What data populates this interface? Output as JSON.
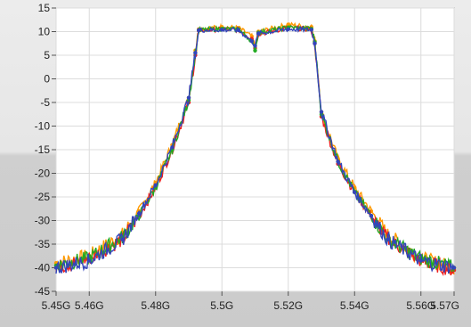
{
  "chart_data": {
    "type": "scatter",
    "title": "",
    "xlabel": "",
    "ylabel": "",
    "xlim": [
      5.45,
      5.57
    ],
    "ylim": [
      -45,
      15
    ],
    "grid": true,
    "x_ticks": [
      {
        "value": 5.45,
        "label": "5.45G"
      },
      {
        "value": 5.46,
        "label": "5.46G"
      },
      {
        "value": 5.48,
        "label": "5.48G"
      },
      {
        "value": 5.5,
        "label": "5.5G"
      },
      {
        "value": 5.52,
        "label": "5.52G"
      },
      {
        "value": 5.54,
        "label": "5.54G"
      },
      {
        "value": 5.56,
        "label": "5.56G"
      },
      {
        "value": 5.57,
        "label": "5.57G"
      }
    ],
    "y_ticks": [
      {
        "value": 15,
        "label": "15"
      },
      {
        "value": 10,
        "label": "10"
      },
      {
        "value": 5,
        "label": "5"
      },
      {
        "value": 0,
        "label": "0"
      },
      {
        "value": -5,
        "label": "-5"
      },
      {
        "value": -10,
        "label": "-10"
      },
      {
        "value": -15,
        "label": "-15"
      },
      {
        "value": -20,
        "label": "-20"
      },
      {
        "value": -25,
        "label": "-25"
      },
      {
        "value": -30,
        "label": "-30"
      },
      {
        "value": -35,
        "label": "-35"
      },
      {
        "value": -40,
        "label": "-40"
      },
      {
        "value": -45,
        "label": "-45"
      }
    ],
    "series": [
      {
        "color": "#ff9900",
        "x": [
          5.45,
          5.46,
          5.47,
          5.475,
          5.48,
          5.485,
          5.49,
          5.492,
          5.493,
          5.5,
          5.505,
          5.509,
          5.51,
          5.511,
          5.52,
          5.527,
          5.528,
          5.53,
          5.535,
          5.54,
          5.545,
          5.55,
          5.56,
          5.57
        ],
        "y": [
          -39,
          -37.5,
          -33,
          -28,
          -22,
          -14,
          -4,
          6,
          10.5,
          11,
          10.8,
          9,
          7,
          10,
          11.5,
          11,
          8,
          -7,
          -17,
          -23,
          -28,
          -33,
          -38,
          -40
        ]
      },
      {
        "color": "#ee2020",
        "x": [
          5.45,
          5.46,
          5.47,
          5.475,
          5.48,
          5.485,
          5.49,
          5.492,
          5.493,
          5.5,
          5.505,
          5.509,
          5.51,
          5.511,
          5.52,
          5.527,
          5.528,
          5.53,
          5.535,
          5.54,
          5.545,
          5.55,
          5.56,
          5.57
        ],
        "y": [
          -40,
          -38,
          -34,
          -29,
          -23,
          -15,
          -5,
          5,
          10.2,
          10.5,
          10.4,
          8.5,
          6.5,
          9.5,
          10.8,
          10.5,
          7.5,
          -8,
          -18,
          -24,
          -29,
          -34,
          -38.5,
          -40.5
        ]
      },
      {
        "color": "#22aa22",
        "x": [
          5.45,
          5.46,
          5.47,
          5.475,
          5.48,
          5.485,
          5.49,
          5.492,
          5.493,
          5.5,
          5.505,
          5.509,
          5.51,
          5.511,
          5.52,
          5.527,
          5.528,
          5.53,
          5.535,
          5.54,
          5.545,
          5.55,
          5.56,
          5.57
        ],
        "y": [
          -39.5,
          -38,
          -33.5,
          -29,
          -23,
          -15,
          -4.5,
          5.5,
          10.3,
          10.6,
          10.5,
          8,
          6,
          9.8,
          10.9,
          10.6,
          7.8,
          -7.5,
          -17.5,
          -24,
          -29,
          -34,
          -38,
          -40
        ]
      },
      {
        "color": "#3344bb",
        "x": [
          5.45,
          5.46,
          5.47,
          5.475,
          5.48,
          5.485,
          5.49,
          5.492,
          5.493,
          5.5,
          5.505,
          5.509,
          5.51,
          5.511,
          5.52,
          5.527,
          5.528,
          5.53,
          5.535,
          5.54,
          5.545,
          5.55,
          5.56,
          5.57
        ],
        "y": [
          -40,
          -38.5,
          -34,
          -28.5,
          -22.5,
          -14.5,
          -4,
          5.5,
          10.3,
          10.4,
          10.3,
          8,
          7,
          9.6,
          10.5,
          10.4,
          7.5,
          -7,
          -17.5,
          -24,
          -29,
          -34,
          -38.5,
          -40
        ]
      }
    ]
  }
}
